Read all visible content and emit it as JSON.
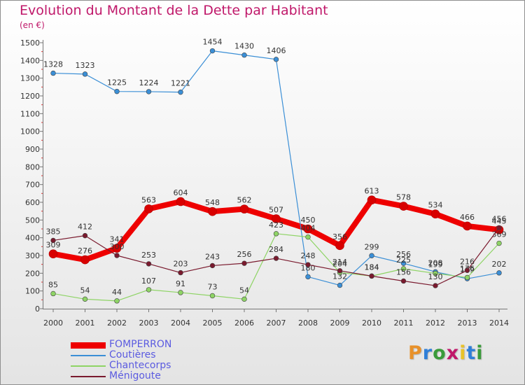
{
  "title": "Evolution du Montant de la Dette par Habitant",
  "subtitle": "(en €)",
  "brand": {
    "text": "Proxiti",
    "letter_colors": [
      "#e8912a",
      "#2f7fd8",
      "#3a9b3a",
      "#c0186a",
      "#e8c22a",
      "#2f7fd8",
      "#3a9b3a"
    ]
  },
  "chart_data": {
    "type": "line",
    "title": "Evolution du Montant de la Dette par Habitant",
    "subtitle": "(en €)",
    "x": [
      "2000",
      "2001",
      "2002",
      "2003",
      "2004",
      "2005",
      "2006",
      "2007",
      "2008",
      "2009",
      "2010",
      "2011",
      "2012",
      "2013",
      "2014"
    ],
    "ylim": [
      0,
      1500
    ],
    "ytick_step": 100,
    "grid": false,
    "legend_position": "bottom-left",
    "series": [
      {
        "name": "FOMPERRON",
        "color": "#ee0000",
        "emphasis": true,
        "values": [
          309,
          276,
          341,
          563,
          604,
          548,
          562,
          507,
          450,
          356,
          613,
          578,
          534,
          466,
          445
        ],
        "labels": [
          "309",
          "276",
          "341",
          "563",
          "604",
          "548",
          "562",
          "507",
          "450",
          "356",
          "613",
          "578",
          "534",
          "466",
          "445"
        ]
      },
      {
        "name": "Coutières",
        "color": "#3b8fd6",
        "emphasis": false,
        "values": [
          1328,
          1323,
          1225,
          1224,
          1221,
          1454,
          1430,
          1406,
          180,
          132,
          299,
          256,
          208,
          169,
          202
        ],
        "labels": [
          "1328",
          "1323",
          "1225",
          "1224",
          "1221",
          "1454",
          "1430",
          "1406",
          "180",
          "132",
          "299",
          "256",
          "208",
          "169",
          "202"
        ]
      },
      {
        "name": "Chantecorps",
        "color": "#8ed465",
        "emphasis": false,
        "values": [
          85,
          54,
          44,
          107,
          91,
          73,
          54,
          423,
          404,
          204,
          184,
          225,
          199,
          176,
          369
        ],
        "labels": [
          "85",
          "54",
          "44",
          "107",
          "91",
          "73",
          "54",
          "423",
          "404",
          "204",
          "184",
          "225",
          "199",
          "176",
          "369"
        ]
      },
      {
        "name": "Ménigoute",
        "color": "#7a1a2e",
        "emphasis": false,
        "values": [
          385,
          412,
          300,
          253,
          203,
          243,
          256,
          284,
          248,
          214,
          184,
          156,
          130,
          216,
          456
        ],
        "labels": [
          "385",
          "412",
          "300",
          "253",
          "203",
          "243",
          "256",
          "284",
          "248",
          "214",
          "184",
          "156",
          "130",
          "216",
          "456"
        ]
      }
    ]
  }
}
